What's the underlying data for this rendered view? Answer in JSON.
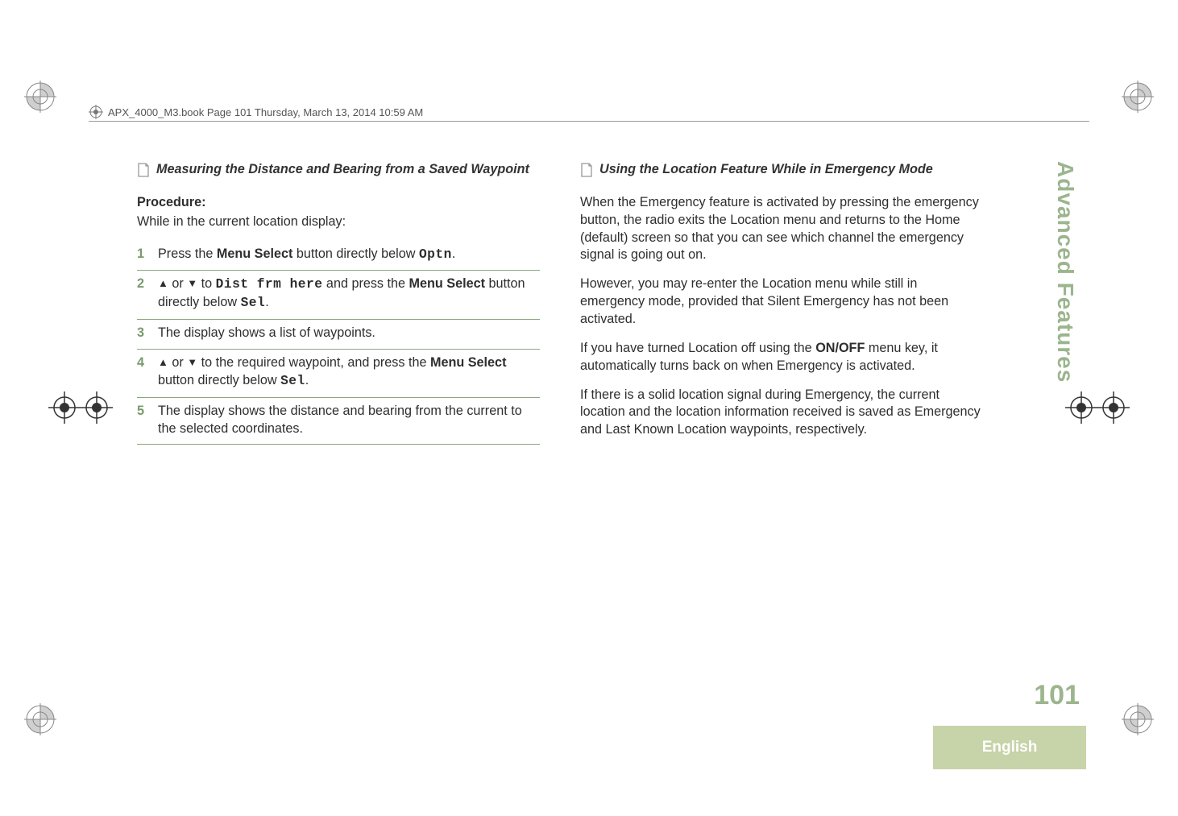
{
  "header": {
    "text": "APX_4000_M3.book  Page 101  Thursday, March 13, 2014  10:59 AM"
  },
  "colors": {
    "accent_green": "#9bb58d",
    "olive_block": "#c7d3a8",
    "step_num": "#7a9a6e",
    "white_text": "#ffffff",
    "body_text": "#333333"
  },
  "left": {
    "section_title": "Measuring the Distance and Bearing from a Saved Waypoint",
    "procedure_label": "Procedure:",
    "procedure_desc": "While in the current location display:",
    "steps": [
      {
        "n": "1",
        "pre": "Press the ",
        "bold1": "Menu Select",
        "mid1": " button directly below ",
        "mono1": "Optn",
        "post": "."
      },
      {
        "n": "2",
        "arrows": true,
        "mid1": " to ",
        "mono1": "Dist frm here",
        "mid2": " and press the ",
        "bold1": "Menu Select",
        "mid3": " button directly below ",
        "mono2": "Sel",
        "post": "."
      },
      {
        "n": "3",
        "plain": "The display shows a list of waypoints."
      },
      {
        "n": "4",
        "arrows": true,
        "mid1": " to the required waypoint, and press the ",
        "bold1": "Menu Select",
        "mid2": " button directly below ",
        "mono1": "Sel",
        "post": "."
      },
      {
        "n": "5",
        "plain": "The display shows the distance and bearing from the current to the selected coordinates."
      }
    ]
  },
  "right": {
    "section_title": "Using the Location Feature While in Emergency Mode",
    "paras": [
      "When the Emergency feature is activated by pressing the emergency button, the radio exits the Location menu and returns to the Home (default) screen so that you can see which channel the emergency signal is going out on.",
      "However, you may re-enter the Location menu while still in emergency mode, provided that Silent Emergency has not been activated."
    ],
    "para3_pre": "If you have turned Location off using the ",
    "para3_bold": "ON/OFF",
    "para3_post": " menu key, it automatically turns back on when Emergency is activated.",
    "para4": "If there is a solid location signal during Emergency, the current location and the location information received is saved as Emergency and Last Known Location waypoints, respectively."
  },
  "side": {
    "tab": "Advanced Features",
    "page": "101",
    "lang": "English"
  }
}
